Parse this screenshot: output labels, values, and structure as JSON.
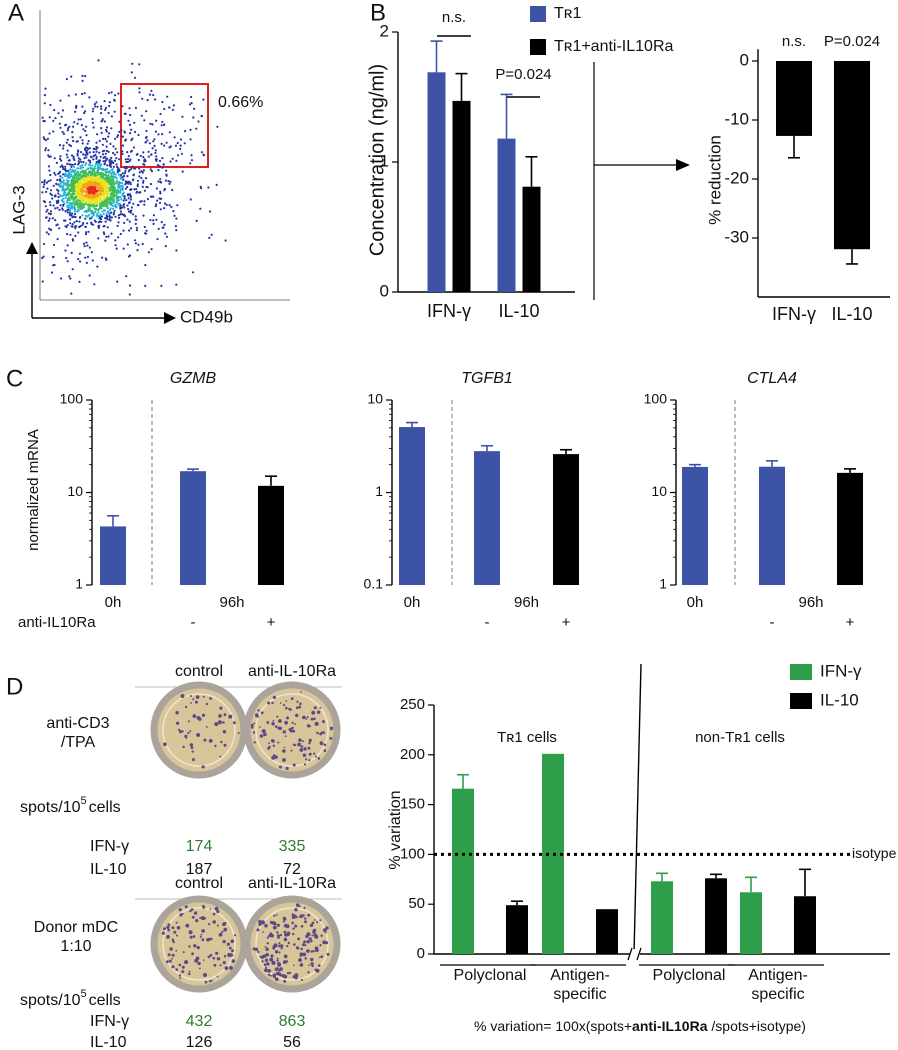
{
  "panel_labels": [
    "A",
    "B",
    "C",
    "D"
  ],
  "flow": {
    "x_label": "CD49b",
    "y_label": "LAG-3",
    "gate_label": "0.66%"
  },
  "chart_data": [
    {
      "type": "bar",
      "y_label": "Concentration (ng/ml)",
      "categories": [
        "IFN-γ",
        "IL-10"
      ],
      "series": [
        {
          "name": "Tʀ1",
          "color": "#3d54a6",
          "values": [
            1.69,
            1.18
          ],
          "errors": [
            0.24,
            0.34
          ]
        },
        {
          "name": "Tʀ1+anti-IL10Ra",
          "color": "#000000",
          "values": [
            1.47,
            0.81
          ],
          "errors": [
            0.21,
            0.23
          ]
        }
      ],
      "ylim": [
        0,
        2
      ],
      "yticks": [
        0,
        1,
        2
      ],
      "annotations": [
        "n.s.",
        "P=0.024"
      ]
    },
    {
      "type": "bar",
      "y_label": "% reduction",
      "categories": [
        "IFN-γ",
        "IL-10"
      ],
      "series": [
        {
          "color": "#000000",
          "values": [
            -12.7,
            -31.9
          ],
          "errors": [
            3.7,
            2.5
          ]
        }
      ],
      "ylim": [
        -40,
        2
      ],
      "yticks": [
        0,
        -10,
        -20,
        -30
      ],
      "annotations": [
        "n.s.",
        "P=0.024"
      ]
    },
    {
      "type": "bar",
      "title": "GZMB",
      "y_label": "normalized mRNA",
      "log_scale": true,
      "time_labels": [
        "0h",
        "96h"
      ],
      "treatment_labels": [
        null,
        "-",
        "+"
      ],
      "treatment_title": "anti-IL10Ra",
      "values": [
        4.3,
        17,
        11.8
      ],
      "errors": [
        1.3,
        0.9,
        3.2
      ],
      "colors": [
        "#3d54a6",
        "#3d54a6",
        "#000000"
      ],
      "ylim": [
        1,
        100
      ],
      "yticks": [
        1,
        10,
        100
      ]
    },
    {
      "type": "bar",
      "title": "TGFB1",
      "log_scale": true,
      "time_labels": [
        "0h",
        "96h"
      ],
      "treatment_labels": [
        null,
        "-",
        "+"
      ],
      "values": [
        5.1,
        2.8,
        2.6
      ],
      "errors": [
        0.6,
        0.4,
        0.3
      ],
      "colors": [
        "#3d54a6",
        "#3d54a6",
        "#000000"
      ],
      "ylim": [
        0.1,
        10
      ],
      "yticks": [
        0.1,
        1,
        10
      ]
    },
    {
      "type": "bar",
      "title": "CTLA4",
      "log_scale": true,
      "time_labels": [
        "0h",
        "96h"
      ],
      "treatment_labels": [
        null,
        "-",
        "+"
      ],
      "values": [
        18.9,
        19,
        16.3
      ],
      "errors": [
        1.1,
        3,
        1.7
      ],
      "colors": [
        "#3d54a6",
        "#3d54a6",
        "#000000"
      ],
      "ylim": [
        1,
        100
      ],
      "yticks": [
        1,
        10,
        100
      ]
    },
    {
      "type": "bar",
      "y_label": "% variation",
      "categories": [
        "Polyclonal",
        "Antigen-\nspecific",
        "Polyclonal",
        "Antigen-\nspecific"
      ],
      "group_labels": [
        "Tʀ1 cells",
        "non-Tʀ1 cells"
      ],
      "series": [
        {
          "name": "IFN-γ",
          "color": "#2e9e4a",
          "values": [
            166,
            201,
            73,
            62
          ],
          "errors": [
            14,
            null,
            8,
            15
          ]
        },
        {
          "name": "IL-10",
          "color": "#000000",
          "values": [
            49,
            45,
            76,
            58
          ],
          "errors": [
            4,
            null,
            4,
            27
          ]
        }
      ],
      "ylim": [
        0,
        250
      ],
      "yticks": [
        0,
        50,
        100,
        150,
        200,
        250
      ],
      "reference_line": {
        "value": 100,
        "label": "isotype"
      },
      "footnote": [
        "% variation= 100x(spots+",
        "anti-IL10Ra",
        " /spots+isotype)"
      ]
    }
  ],
  "spot_assays": [
    {
      "condition": "anti-CD3\n/TPA",
      "columns": [
        "control",
        "anti-IL-10Ra"
      ],
      "unit": [
        "spots/10",
        "5",
        "cells"
      ],
      "rows": [
        {
          "label": "IFN-γ",
          "color": "#2e7d32",
          "values": [
            174,
            335
          ]
        },
        {
          "label": "IL-10",
          "color": "#111111",
          "values": [
            187,
            72
          ]
        }
      ]
    },
    {
      "condition": "Donor mDC\n1:10",
      "columns": [
        "control",
        "anti-IL-10Ra"
      ],
      "unit": [
        "spots/10",
        "5",
        "cells"
      ],
      "rows": [
        {
          "label": "IFN-γ",
          "color": "#2e7d32",
          "values": [
            432,
            863
          ]
        },
        {
          "label": "IL-10",
          "color": "#111111",
          "values": [
            126,
            56
          ]
        }
      ]
    }
  ]
}
